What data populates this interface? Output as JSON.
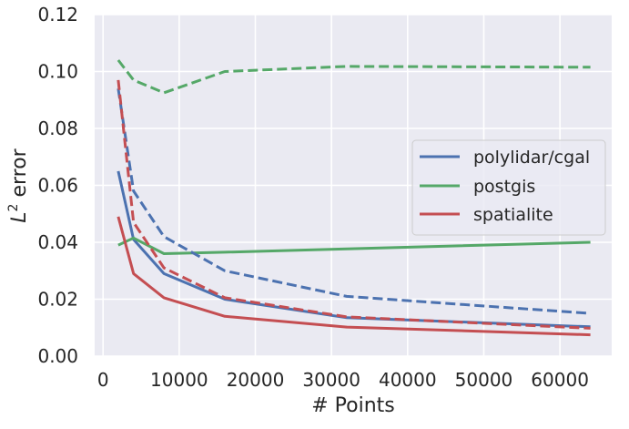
{
  "chart_data": {
    "type": "line",
    "title": "",
    "xlabel": "# Points",
    "ylabel_base": "L",
    "ylabel_sup": "2",
    "ylabel_rest": " error",
    "xlim": [
      -1100,
      66800
    ],
    "ylim": [
      0.0,
      0.12
    ],
    "xticks": [
      0,
      10000,
      20000,
      30000,
      40000,
      50000,
      60000
    ],
    "xtick_labels": [
      "0",
      "10000",
      "20000",
      "30000",
      "40000",
      "50000",
      "60000"
    ],
    "yticks": [
      0.0,
      0.02,
      0.04,
      0.06,
      0.08,
      0.1,
      0.12
    ],
    "ytick_labels": [
      "0.00",
      "0.02",
      "0.04",
      "0.06",
      "0.08",
      "0.10",
      "0.12"
    ],
    "grid": true,
    "background_color": "#EAEAF2",
    "legend_position": "center-right",
    "legend": [
      {
        "label": "polylidar/cgal",
        "color": "#4C72B0"
      },
      {
        "label": "postgis",
        "color": "#55A868"
      },
      {
        "label": "spatialite",
        "color": "#C44E52"
      }
    ],
    "x": [
      2000,
      4000,
      8000,
      16000,
      32000,
      64000
    ],
    "series": [
      {
        "name": "polylidar/cgal",
        "style": "solid",
        "color": "#4C72B0",
        "values": [
          0.065,
          0.041,
          0.029,
          0.02,
          0.0135,
          0.0103
        ]
      },
      {
        "name": "postgis",
        "style": "solid",
        "color": "#55A868",
        "values": [
          0.039,
          0.0415,
          0.036,
          0.0365,
          0.0377,
          0.04
        ]
      },
      {
        "name": "spatialite",
        "style": "solid",
        "color": "#C44E52",
        "values": [
          0.049,
          0.029,
          0.0205,
          0.014,
          0.0102,
          0.0075
        ]
      },
      {
        "name": "",
        "style": "dashed",
        "color": "#4C72B0",
        "values": [
          0.094,
          0.058,
          0.042,
          0.03,
          0.021,
          0.015
        ]
      },
      {
        "name": "",
        "style": "dashed",
        "color": "#55A868",
        "values": [
          0.104,
          0.097,
          0.0925,
          0.1,
          0.1018,
          0.1015
        ]
      },
      {
        "name": "",
        "style": "dashed",
        "color": "#C44E52",
        "values": [
          0.097,
          0.047,
          0.031,
          0.0205,
          0.0138,
          0.0098
        ]
      }
    ]
  }
}
